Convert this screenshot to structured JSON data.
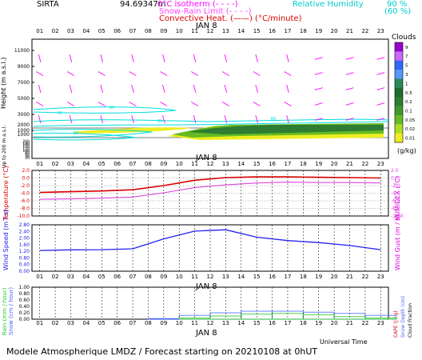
{
  "header": {
    "station": "SIRTA",
    "coords": "94.69347",
    "zero_unit": "m",
    "legend_isotherm_label": "0°C isotherm",
    "legend_isotherm_dash": "(- - - -)",
    "legend_snow_label": "Snow-Rain Limit",
    "legend_snow_dash": "(- - - -)",
    "legend_conv_label": "Convective Heat.",
    "legend_conv_line": "(——)",
    "legend_conv_unit": "(°C/minute)",
    "legend_rh_label": "Relative Humidity",
    "legend_rh_90": "90 %",
    "legend_rh_60": "(60 %)"
  },
  "date_label": "JAN  8",
  "hours": [
    "01",
    "02",
    "03",
    "04",
    "05",
    "06",
    "07",
    "08",
    "09",
    "10",
    "11",
    "12",
    "13",
    "14",
    "15",
    "16",
    "17",
    "18",
    "19",
    "20",
    "21",
    "22",
    "23"
  ],
  "footer": {
    "universal_time": "Universal Time",
    "forecast": "Modele Atmospherique LMDZ / Forecast starting on 20210108 at 0hUT"
  },
  "colors": {
    "magenta": "#ff00ff",
    "red": "#dd0000",
    "cyan": "#00dddd",
    "blue": "#2222ee",
    "pink": "#dd44dd",
    "rain_green": "#22cc22",
    "snow_blue": "#4466ff",
    "cloud_dark_green": "#2e7d32",
    "cloud_green": "#66bb22",
    "cloud_yellow": "#eeee22"
  },
  "chart_data": [
    {
      "type": "heatmap",
      "id": "clouds",
      "ylabel": "Height   (m a.s.l.)",
      "ylabel_low": "Up to 200 m a.s.l.",
      "yticks_upper": [
        "11000",
        "9000",
        "7000",
        "5000",
        "3000",
        "1000"
      ],
      "yticks_mid": [
        "2000",
        "1000"
      ],
      "yticks_low": [
        "200",
        "180",
        "160",
        "140",
        "120",
        "100",
        "80",
        "60",
        "40",
        "20"
      ],
      "colorbar_title": "Clouds",
      "colorbar_unit": "(g/kg)",
      "colorbar_ticks": [
        "9",
        "7",
        "5",
        "3",
        "1",
        "0.5",
        "0.2",
        "0.1",
        "0.05",
        "0.02",
        "0.01"
      ],
      "colorbar_colors": [
        "#9900cc",
        "#cc66ff",
        "#3366ff",
        "#5599ff",
        "#2a8a5a",
        "#1e6b2e",
        "#2e7d32",
        "#3e9a2a",
        "#66bb22",
        "#aadd22",
        "#eeee22"
      ],
      "rh_contour_labels": [
        "60",
        "60",
        "90",
        "90",
        "60"
      ]
    },
    {
      "type": "line",
      "id": "temperature",
      "ylabel": "Temperature (°C)",
      "ylabel_right": "HUMIDEX (°C)",
      "yticks": [
        "2.0",
        "0.0",
        "-2.0",
        "-4.0",
        "-6.0",
        "-8.0",
        "-10.0"
      ],
      "ylim": [
        -10,
        2
      ],
      "series": [
        {
          "x": [
            1,
            3,
            5,
            7,
            9,
            11,
            13,
            15,
            17,
            19,
            21,
            23
          ],
          "values": [
            -3.8,
            -3.6,
            -3.4,
            -3.1,
            -2.0,
            -0.6,
            0.1,
            0.3,
            0.3,
            0.2,
            0.1,
            0.0
          ]
        },
        {
          "x": [
            1,
            3,
            5,
            7,
            9,
            11,
            13,
            15,
            17,
            19,
            21,
            23
          ],
          "values": [
            -5.6,
            -5.5,
            -5.3,
            -5.0,
            -3.9,
            -2.5,
            -1.8,
            -1.3,
            -1.1,
            -1.2,
            -1.2,
            -1.3
          ]
        }
      ]
    },
    {
      "type": "line",
      "id": "wind",
      "ylabel": "Wind Speed (m / s)",
      "ylabel_right": "Wind Gust (m / s)",
      "yticks": [
        "2.80",
        "2.40",
        "2.00",
        "1.60",
        "1.20",
        "0.80",
        "0.40",
        "0.00"
      ],
      "ylim": [
        0,
        2.8
      ],
      "series": [
        {
          "x": [
            1,
            3,
            5,
            7,
            9,
            11,
            13,
            15,
            17,
            19,
            21,
            23
          ],
          "values": [
            1.25,
            1.29,
            1.3,
            1.35,
            1.95,
            2.42,
            2.5,
            2.05,
            1.85,
            1.73,
            1.55,
            1.3
          ]
        }
      ]
    },
    {
      "type": "bar",
      "id": "precip",
      "ylabel": "Rain (mm / hour)",
      "ylabel_b": "Snow (cm / hour)",
      "ylabel_right": "Snow Depth (cm)",
      "ylabel_right_b": "Cloud Fraction",
      "ylabel_right_c": "CAPE (J / g)",
      "yticks": [
        "1.00",
        "0.80",
        "0.60",
        "0.40",
        "0.20",
        "0.00"
      ],
      "ylim": [
        0,
        1
      ],
      "cloud_fraction": {
        "x": [
          1,
          3,
          5,
          7,
          9,
          11,
          13,
          15,
          17,
          19,
          21,
          23
        ],
        "values": [
          0.0,
          0.0,
          0.0,
          0.0,
          0.02,
          0.12,
          0.2,
          0.25,
          0.25,
          0.22,
          0.18,
          0.12
        ]
      },
      "rain": {
        "x": [
          1,
          3,
          5,
          7,
          9,
          11,
          13,
          15,
          17,
          19,
          21,
          23
        ],
        "values": [
          0,
          0,
          0,
          0,
          0,
          0.04,
          0.1,
          0.16,
          0.18,
          0.14,
          0.08,
          0.04
        ]
      }
    }
  ]
}
